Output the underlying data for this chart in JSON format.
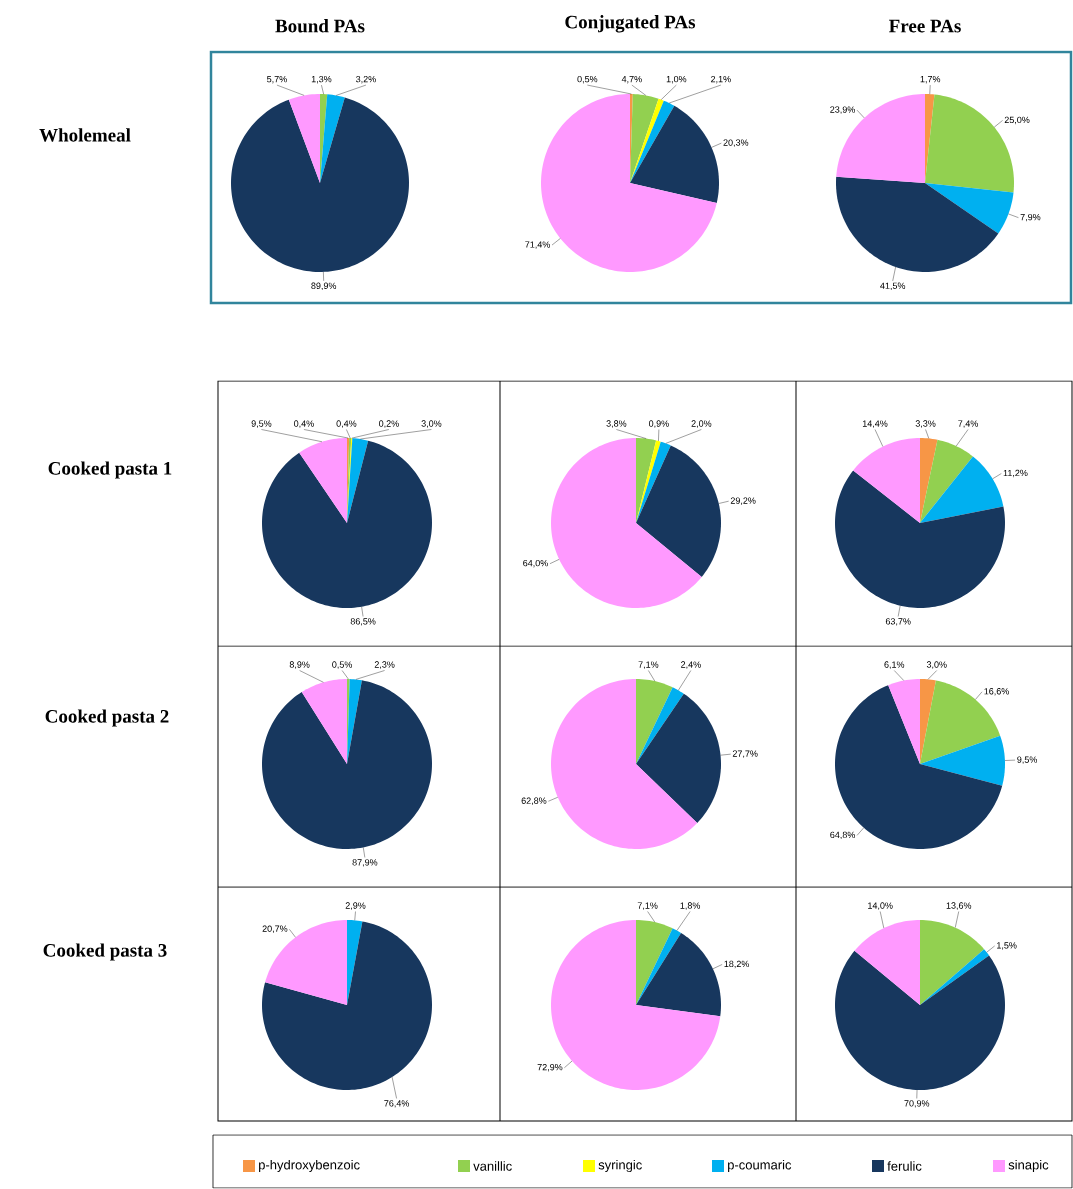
{
  "chart_data": [
    {
      "type": "pie",
      "title": "Bound PAs",
      "ylabel": "Wholemeal",
      "values": [
        null,
        1.3,
        null,
        3.2,
        89.9,
        5.7
      ],
      "value_labels": [
        null,
        "1,3%",
        null,
        "3,2%",
        "89,9%",
        "5,7%"
      ],
      "colors": [
        "#f79646",
        "#92d050",
        "#ffff00",
        "#00b0f0",
        "#17375e",
        "#ff99ff"
      ]
    },
    {
      "type": "pie",
      "title": "Conjugated PAs",
      "values": [
        0.5,
        4.7,
        1.0,
        2.1,
        20.3,
        71.4
      ],
      "value_labels": [
        "0,5%",
        "4,7%",
        "1,0%",
        "2,1%",
        "20,3%",
        "71,4%"
      ],
      "colors": [
        "#f79646",
        "#92d050",
        "#ffff00",
        "#00b0f0",
        "#17375e",
        "#ff99ff"
      ]
    },
    {
      "type": "pie",
      "title": "Free PAs",
      "values": [
        1.7,
        25.0,
        null,
        7.9,
        41.5,
        23.9
      ],
      "value_labels": [
        "1,7%",
        "25,0%",
        null,
        "7,9%",
        "41,5%",
        "23,9%"
      ],
      "colors": [
        "#f79646",
        "#92d050",
        "#ffff00",
        "#00b0f0",
        "#17375e",
        "#ff99ff"
      ]
    },
    {
      "type": "pie",
      "ylabel": "Cooked pasta 1",
      "values": [
        0.4,
        0.4,
        0.2,
        3.0,
        86.5,
        9.5
      ],
      "value_labels": [
        "0,4%",
        "0,4%",
        "0,2%",
        "3,0%",
        "86,5%",
        "9,5%"
      ],
      "colors": [
        "#f79646",
        "#92d050",
        "#ffff00",
        "#00b0f0",
        "#17375e",
        "#ff99ff"
      ]
    },
    {
      "type": "pie",
      "values": [
        null,
        3.8,
        0.9,
        2.0,
        29.2,
        64.0
      ],
      "value_labels": [
        null,
        "3,8%",
        "0,9%",
        "2,0%",
        "29,2%",
        "64,0%"
      ],
      "colors": [
        "#f79646",
        "#92d050",
        "#ffff00",
        "#00b0f0",
        "#17375e",
        "#ff99ff"
      ]
    },
    {
      "type": "pie",
      "values": [
        3.3,
        7.4,
        null,
        11.2,
        63.7,
        14.4
      ],
      "value_labels": [
        "3,3%",
        "7,4%",
        null,
        "11,2%",
        "63,7%",
        "14,4%"
      ],
      "colors": [
        "#f79646",
        "#92d050",
        "#ffff00",
        "#00b0f0",
        "#17375e",
        "#ff99ff"
      ]
    },
    {
      "type": "pie",
      "ylabel": "Cooked pasta 2",
      "values": [
        null,
        0.5,
        null,
        2.3,
        87.9,
        8.9
      ],
      "value_labels": [
        null,
        "0,5%",
        null,
        "2,3%",
        "87,9%",
        "8,9%"
      ],
      "colors": [
        "#f79646",
        "#92d050",
        "#ffff00",
        "#00b0f0",
        "#17375e",
        "#ff99ff"
      ]
    },
    {
      "type": "pie",
      "values": [
        null,
        7.1,
        null,
        2.4,
        27.7,
        62.8
      ],
      "value_labels": [
        null,
        "7,1%",
        null,
        "2,4%",
        "27,7%",
        "62,8%"
      ],
      "colors": [
        "#f79646",
        "#92d050",
        "#ffff00",
        "#00b0f0",
        "#17375e",
        "#ff99ff"
      ]
    },
    {
      "type": "pie",
      "values": [
        3.0,
        16.6,
        null,
        9.5,
        64.8,
        6.1
      ],
      "value_labels": [
        "3,0%",
        "16,6%",
        null,
        "9,5%",
        "64,8%",
        "6,1%"
      ],
      "colors": [
        "#f79646",
        "#92d050",
        "#ffff00",
        "#00b0f0",
        "#17375e",
        "#ff99ff"
      ]
    },
    {
      "type": "pie",
      "ylabel": "Cooked pasta 3",
      "values": [
        null,
        null,
        null,
        2.9,
        76.4,
        20.7
      ],
      "value_labels": [
        null,
        null,
        null,
        "2,9%",
        "76,4%",
        "20,7%"
      ],
      "colors": [
        "#f79646",
        "#92d050",
        "#ffff00",
        "#00b0f0",
        "#17375e",
        "#ff99ff"
      ]
    },
    {
      "type": "pie",
      "values": [
        null,
        7.1,
        null,
        1.8,
        18.2,
        72.9
      ],
      "value_labels": [
        null,
        "7,1%",
        null,
        "1,8%",
        "18,2%",
        "72,9%"
      ],
      "colors": [
        "#f79646",
        "#92d050",
        "#ffff00",
        "#00b0f0",
        "#17375e",
        "#ff99ff"
      ]
    },
    {
      "type": "pie",
      "legend": "bottom",
      "categories": [
        "p-hydroxybenzoic",
        "vanillic",
        "syringic",
        "p-coumaric",
        "ferulic",
        "sinapic"
      ],
      "values": [
        null,
        13.6,
        null,
        1.5,
        70.9,
        14.0
      ],
      "value_labels": [
        null,
        "13,6%",
        null,
        "1,5%",
        "70,9%",
        "14,0%"
      ],
      "colors": [
        "#f79646",
        "#92d050",
        "#ffff00",
        "#00b0f0",
        "#17375e",
        "#ff99ff"
      ]
    }
  ]
}
